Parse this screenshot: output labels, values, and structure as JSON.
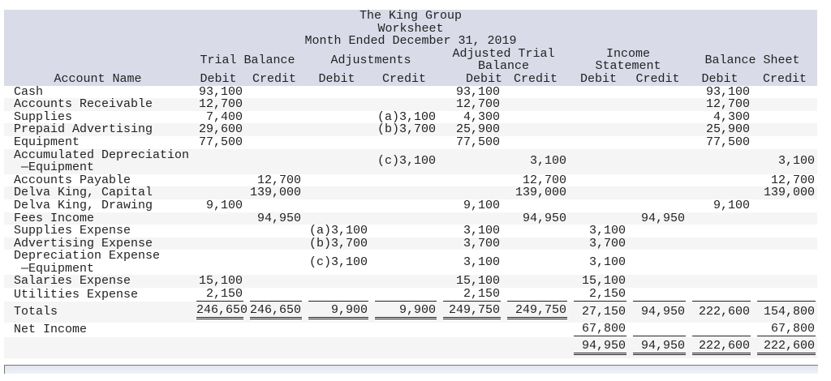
{
  "title": {
    "company": "The King Group",
    "report": "Worksheet",
    "period": "Month Ended December 31, 2019"
  },
  "groups": {
    "trial_balance": "Trial Balance",
    "adjustments": "Adjustments",
    "adjusted_line1": "Adjusted Trial",
    "adjusted_line2": "Balance",
    "income_line1": "Income",
    "income_line2": "Statement",
    "balance_sheet": "Balance Sheet"
  },
  "columns": {
    "account": "Account Name",
    "sub": [
      "Debit",
      "Credit",
      "Debit",
      "Credit",
      "Debit",
      "Credit",
      "Debit",
      "Credit",
      "Debit",
      "Credit"
    ]
  },
  "rows": [
    {
      "name": "Cash",
      "values": [
        "93,100",
        "",
        "",
        "",
        "93,100",
        "",
        "",
        "",
        "93,100",
        ""
      ]
    },
    {
      "name": "Accounts Receivable",
      "values": [
        "12,700",
        "",
        "",
        "",
        "12,700",
        "",
        "",
        "",
        "12,700",
        ""
      ]
    },
    {
      "name": "Supplies",
      "values": [
        "7,400",
        "",
        "",
        "(a)3,100",
        "4,300",
        "",
        "",
        "",
        "4,300",
        ""
      ]
    },
    {
      "name": "Prepaid Advertising",
      "values": [
        "29,600",
        "",
        "",
        "(b)3,700",
        "25,900",
        "",
        "",
        "",
        "25,900",
        ""
      ]
    },
    {
      "name": "Equipment",
      "values": [
        "77,500",
        "",
        "",
        "",
        "77,500",
        "",
        "",
        "",
        "77,500",
        ""
      ]
    },
    {
      "name": "Accumulated Depreciation",
      "name2": "—Equipment",
      "values": [
        "",
        "",
        "",
        "(c)3,100",
        "",
        "3,100",
        "",
        "",
        "",
        "3,100"
      ]
    },
    {
      "name": "Accounts Payable",
      "values": [
        "",
        "12,700",
        "",
        "",
        "",
        "12,700",
        "",
        "",
        "",
        "12,700"
      ]
    },
    {
      "name": "Delva King, Capital",
      "values": [
        "",
        "139,000",
        "",
        "",
        "",
        "139,000",
        "",
        "",
        "",
        "139,000"
      ]
    },
    {
      "name": "Delva King, Drawing",
      "values": [
        "9,100",
        "",
        "",
        "",
        "9,100",
        "",
        "",
        "",
        "9,100",
        ""
      ]
    },
    {
      "name": "Fees Income",
      "values": [
        "",
        "94,950",
        "",
        "",
        "",
        "94,950",
        "",
        "94,950",
        "",
        ""
      ]
    },
    {
      "name": "Supplies Expense",
      "values": [
        "",
        "",
        "(a)3,100",
        "",
        "3,100",
        "",
        "3,100",
        "",
        "",
        ""
      ]
    },
    {
      "name": "Advertising Expense",
      "values": [
        "",
        "",
        "(b)3,700",
        "",
        "3,700",
        "",
        "3,700",
        "",
        "",
        ""
      ]
    },
    {
      "name": "Depreciation Expense",
      "name2": "—Equipment",
      "values": [
        "",
        "",
        "(c)3,100",
        "",
        "3,100",
        "",
        "3,100",
        "",
        "",
        ""
      ]
    },
    {
      "name": "Salaries Expense",
      "values": [
        "15,100",
        "",
        "",
        "",
        "15,100",
        "",
        "15,100",
        "",
        "",
        ""
      ]
    },
    {
      "name": "Utilities Expense",
      "values": [
        "2,150",
        "",
        "",
        "",
        "2,150",
        "",
        "2,150",
        "",
        "",
        ""
      ]
    }
  ],
  "totals": {
    "name": "Totals",
    "values": [
      "246,650",
      "246,650",
      "9,900",
      "9,900",
      "249,750",
      "249,750",
      "27,150",
      "94,950",
      "222,600",
      "154,800"
    ]
  },
  "net_income": {
    "name": "Net Income",
    "values": [
      "",
      "",
      "",
      "",
      "",
      "",
      "67,800",
      "",
      "",
      "67,800"
    ]
  },
  "final": {
    "values": [
      "",
      "",
      "",
      "",
      "",
      "",
      "94,950",
      "94,950",
      "222,600",
      "222,600"
    ]
  }
}
